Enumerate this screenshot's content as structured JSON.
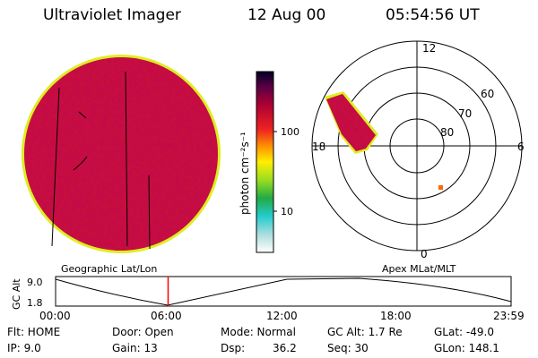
{
  "header": {
    "title": "Ultraviolet Imager",
    "date": "12 Aug 00",
    "time": "05:54:56 UT"
  },
  "colors": {
    "disk_fill": "#cc1133",
    "disk_rim": "#ddee22",
    "colorbar_stops": [
      "#ffffff",
      "#22cccc",
      "#22aa44",
      "#99dd22",
      "#ffee00",
      "#ff9900",
      "#ee2222",
      "#aa0033",
      "#440055",
      "#000022"
    ],
    "marker": "#ff0000"
  },
  "colorbar": {
    "unit_label": "photon cm⁻²s⁻¹",
    "ticks": [
      "100",
      "10"
    ]
  },
  "polar_plot": {
    "labels": {
      "top": "12",
      "bottom": "0",
      "left": "18",
      "right": "6"
    },
    "circle_labels": [
      "60",
      "70",
      "80"
    ]
  },
  "orbit_panel": {
    "left_caption": "Geographic Lat/Lon",
    "right_caption": "Apex MLat/MLT",
    "y_axis_label": "GC Alt",
    "y_ticks": [
      "9.0",
      "1.8"
    ],
    "x_ticks": [
      "00:00",
      "06:00",
      "12:00",
      "18:00",
      "23:59"
    ],
    "current_time_fraction": 0.247
  },
  "info": {
    "flt": "Flt: HOME",
    "ip": "IP: 9.0",
    "door": "Door: Open",
    "gain": "Gain: 13",
    "mode": "Mode: Normal",
    "dsp": "Dsp:",
    "dsp_value": "36.2",
    "gc_alt": "GC Alt: 1.7 Re",
    "seq": "Seq: 30",
    "glat": "GLat: -49.0",
    "glon": "GLon: 148.1"
  }
}
